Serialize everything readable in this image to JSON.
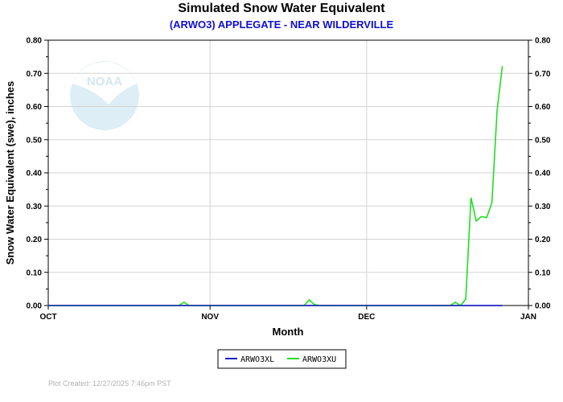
{
  "chart_data": {
    "type": "line",
    "title": "Simulated Snow Water Equivalent",
    "subtitle": "(ARWO3) APPLEGATE - NEAR WILDERVILLE",
    "xlabel": "Month",
    "ylabel": "Snow Water Equivalent (swe),  inches",
    "x_ticks": [
      "OCT",
      "NOV",
      "DEC",
      "JAN"
    ],
    "x_tick_dates": [
      "2025-10-01",
      "2025-11-01",
      "2025-12-01",
      "2026-01-01"
    ],
    "xlim": [
      "2025-10-01",
      "2026-01-01"
    ],
    "ylim": [
      0,
      0.8
    ],
    "y_ticks": [
      0.0,
      0.1,
      0.2,
      0.3,
      0.4,
      0.5,
      0.6,
      0.7,
      0.8
    ],
    "grid": true,
    "legend_position": "bottom-center",
    "series": [
      {
        "name": "ARWO3XL",
        "color": "#1010c0",
        "points": [
          [
            "2025-10-01",
            0.0
          ],
          [
            "2025-12-27",
            0.0
          ]
        ]
      },
      {
        "name": "ARWO3XU",
        "color": "#22dd22",
        "points": [
          [
            "2025-10-01",
            0.0
          ],
          [
            "2025-10-26",
            0.0
          ],
          [
            "2025-10-27",
            0.01
          ],
          [
            "2025-10-28",
            0.0
          ],
          [
            "2025-11-19",
            0.0
          ],
          [
            "2025-11-20",
            0.017
          ],
          [
            "2025-11-21",
            0.003
          ],
          [
            "2025-11-22",
            0.0
          ],
          [
            "2025-12-17",
            0.0
          ],
          [
            "2025-12-18",
            0.01
          ],
          [
            "2025-12-19",
            0.0
          ],
          [
            "2025-12-20",
            0.02
          ],
          [
            "2025-12-21",
            0.325
          ],
          [
            "2025-12-22",
            0.255
          ],
          [
            "2025-12-23",
            0.268
          ],
          [
            "2025-12-24",
            0.265
          ],
          [
            "2025-12-25",
            0.31
          ],
          [
            "2025-12-26",
            0.59
          ],
          [
            "2025-12-27",
            0.722
          ]
        ]
      }
    ]
  },
  "watermark": {
    "text": "NOAA",
    "icon": "noaa-logo"
  },
  "footer": {
    "created": "Plot Created: 12/27/2025 7:46pm PST"
  }
}
